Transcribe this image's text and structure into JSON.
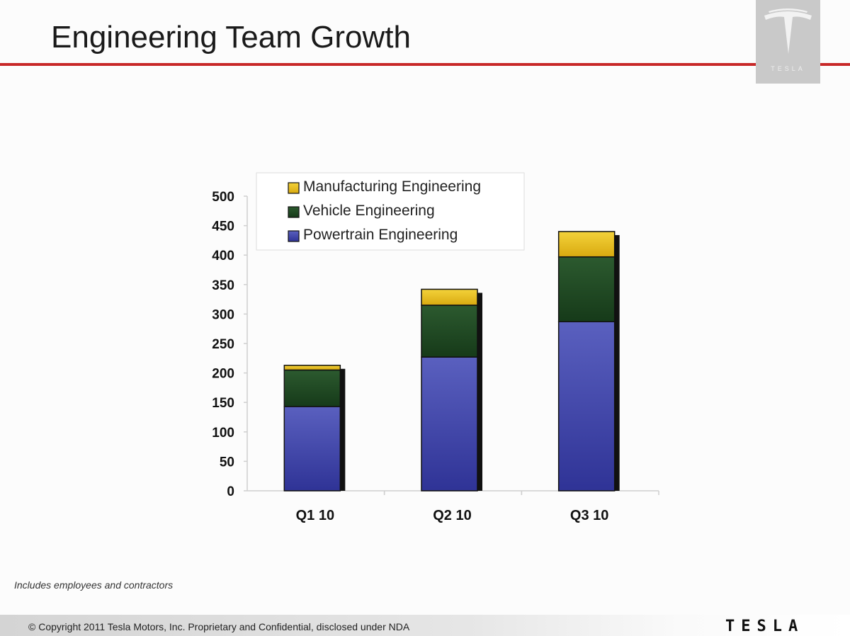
{
  "slide": {
    "title": "Engineering Team Growth",
    "logo_word": "TESLA",
    "footnote": "Includes employees and contractors",
    "copyright": "© Copyright 2011 Tesla Motors, Inc. Proprietary and Confidential, disclosed under NDA",
    "footer_logo": "TESLA"
  },
  "colors": {
    "accent_rule": "#c82828",
    "powertrain": "#4a4fae",
    "vehicle": "#1f4a22",
    "manufacturing": "#e8bf1e",
    "bar_shadow": "#111111"
  },
  "chart_data": {
    "type": "bar",
    "stacked": true,
    "categories": [
      "Q1 10",
      "Q2 10",
      "Q3 10"
    ],
    "series": [
      {
        "name": "Powertrain Engineering",
        "values": [
          143,
          227,
          287
        ],
        "color": "#4a4fae"
      },
      {
        "name": "Vehicle Engineering",
        "values": [
          62,
          88,
          110
        ],
        "color": "#1f4a22"
      },
      {
        "name": "Manufacturing Engineering",
        "values": [
          8,
          27,
          43
        ],
        "color": "#e8bf1e"
      }
    ],
    "yticks": [
      "0",
      "50",
      "100",
      "150",
      "200",
      "250",
      "300",
      "350",
      "400",
      "450",
      "500"
    ],
    "ylim": [
      0,
      500
    ],
    "legend": {
      "placement": "top",
      "entries": [
        "Manufacturing Engineering",
        "Vehicle Engineering",
        "Powertrain Engineering"
      ]
    },
    "grid": false
  }
}
